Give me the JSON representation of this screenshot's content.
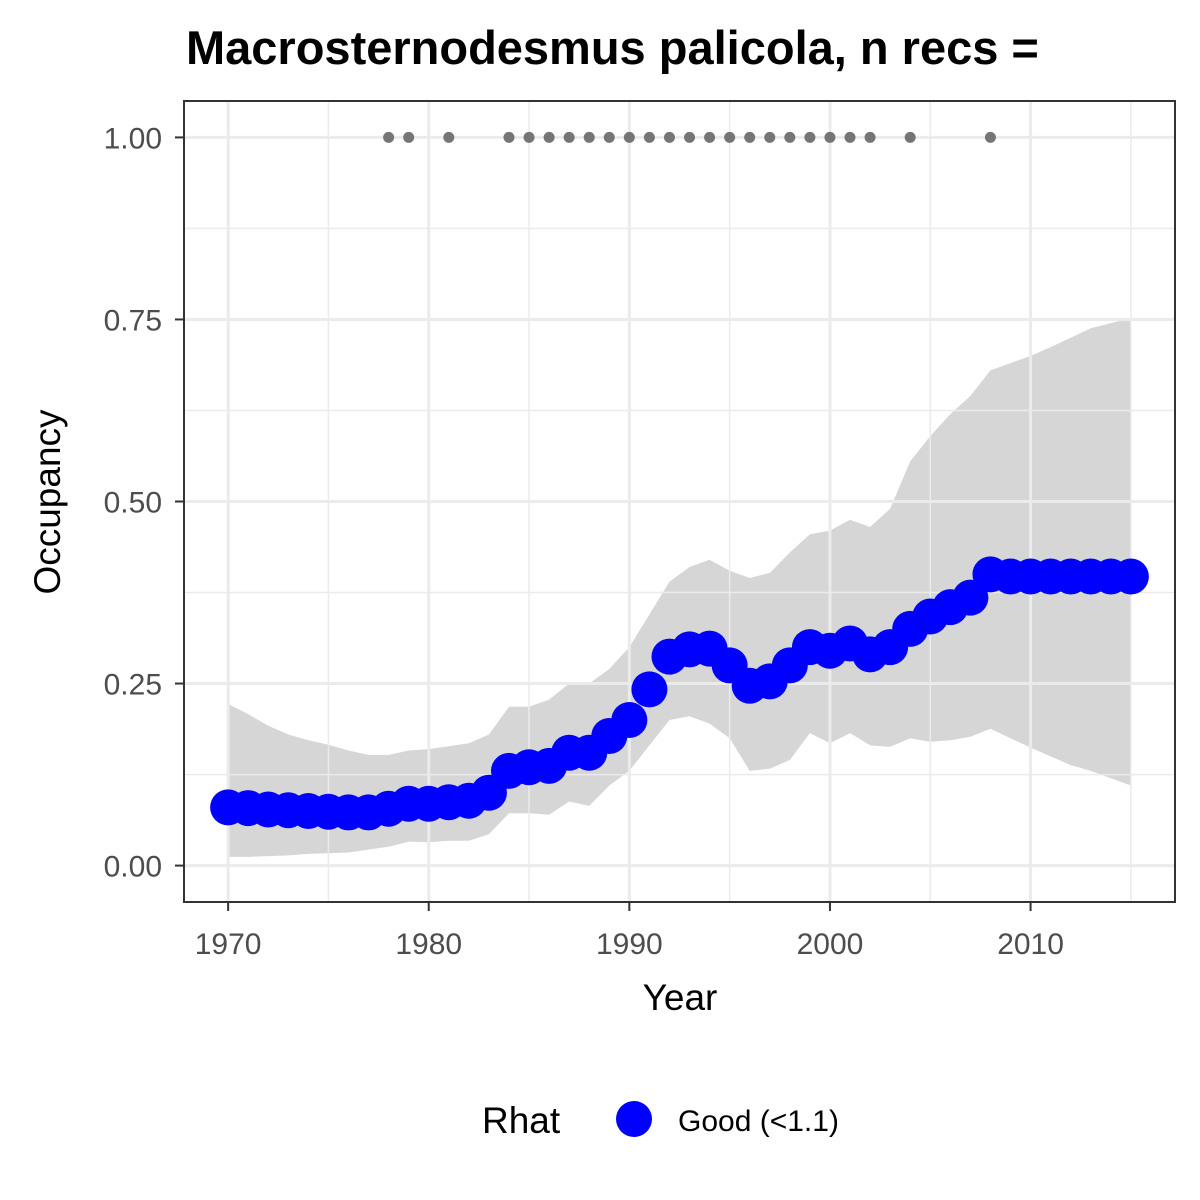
{
  "chart_data": {
    "type": "line",
    "title": "Macrosternodesmus palicola, n recs =",
    "xlabel": "Year",
    "ylabel": "Occupancy",
    "xlim": [
      1967.8,
      2017.2
    ],
    "ylim": [
      -0.05,
      1.05
    ],
    "x_ticks": [
      1970,
      1980,
      1990,
      2000,
      2010
    ],
    "x_tick_labels": [
      "1970",
      "1980",
      "1990",
      "2000",
      "2010"
    ],
    "y_ticks": [
      0,
      0.25,
      0.5,
      0.75,
      1.0
    ],
    "y_tick_labels": [
      "0.00",
      "0.25",
      "0.50",
      "0.75",
      "1.00"
    ],
    "grid": true,
    "colors": {
      "point": "#0000ff",
      "ribbon": "#d6d6d6",
      "record_point": "#757575",
      "grid": "#ebebeb",
      "panel_border": "#333333"
    },
    "x": [
      1970,
      1971,
      1972,
      1973,
      1974,
      1975,
      1976,
      1977,
      1978,
      1979,
      1980,
      1981,
      1982,
      1983,
      1984,
      1985,
      1986,
      1987,
      1988,
      1989,
      1990,
      1991,
      1992,
      1993,
      1994,
      1995,
      1996,
      1997,
      1998,
      1999,
      2000,
      2001,
      2002,
      2003,
      2004,
      2005,
      2006,
      2007,
      2008,
      2009,
      2010,
      2011,
      2012,
      2013,
      2014,
      2015
    ],
    "series": [
      {
        "name": "Good (<1.1)",
        "values": [
          0.08,
          0.079,
          0.077,
          0.076,
          0.075,
          0.074,
          0.073,
          0.073,
          0.078,
          0.085,
          0.085,
          0.087,
          0.089,
          0.1,
          0.13,
          0.135,
          0.137,
          0.155,
          0.155,
          0.178,
          0.2,
          0.242,
          0.287,
          0.297,
          0.298,
          0.275,
          0.247,
          0.253,
          0.275,
          0.3,
          0.295,
          0.305,
          0.29,
          0.3,
          0.325,
          0.342,
          0.355,
          0.368,
          0.4,
          0.397,
          0.397,
          0.397,
          0.397,
          0.397,
          0.397,
          0.397
        ]
      }
    ],
    "ribbon_lower": [
      0.012,
      0.012,
      0.013,
      0.014,
      0.016,
      0.017,
      0.018,
      0.022,
      0.026,
      0.033,
      0.032,
      0.034,
      0.034,
      0.043,
      0.072,
      0.072,
      0.07,
      0.088,
      0.082,
      0.11,
      0.13,
      0.165,
      0.2,
      0.205,
      0.195,
      0.175,
      0.13,
      0.133,
      0.145,
      0.182,
      0.168,
      0.182,
      0.165,
      0.163,
      0.175,
      0.17,
      0.172,
      0.177,
      0.188,
      0.175,
      0.162,
      0.15,
      0.138,
      0.13,
      0.12,
      0.11
    ],
    "ribbon_upper": [
      0.222,
      0.208,
      0.192,
      0.18,
      0.172,
      0.166,
      0.158,
      0.152,
      0.152,
      0.158,
      0.16,
      0.164,
      0.168,
      0.18,
      0.218,
      0.218,
      0.228,
      0.25,
      0.25,
      0.27,
      0.3,
      0.345,
      0.39,
      0.41,
      0.42,
      0.405,
      0.395,
      0.402,
      0.43,
      0.455,
      0.46,
      0.475,
      0.465,
      0.49,
      0.555,
      0.59,
      0.62,
      0.645,
      0.68,
      0.69,
      0.7,
      0.712,
      0.725,
      0.738,
      0.745,
      0.752
    ],
    "record_years": [
      1978,
      1979,
      1981,
      1984,
      1985,
      1986,
      1987,
      1988,
      1989,
      1990,
      1991,
      1992,
      1993,
      1994,
      1995,
      1996,
      1997,
      1998,
      1999,
      2000,
      2001,
      2002,
      2004,
      2008
    ],
    "record_value": 1.0,
    "legend": {
      "title": "Rhat",
      "entries": [
        "Good (<1.1)"
      ],
      "position": "bottom"
    }
  }
}
